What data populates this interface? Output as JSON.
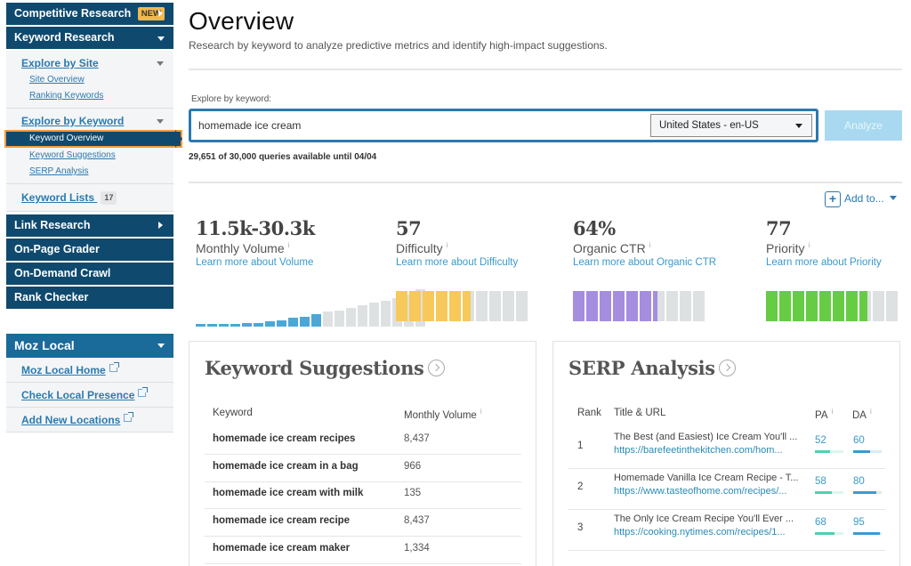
{
  "sidebar": {
    "competitive_research": {
      "label": "Competitive Research",
      "badge": "NEW"
    },
    "keyword_research": {
      "label": "Keyword Research"
    },
    "explore_by_site": {
      "label": "Explore by Site",
      "items": [
        {
          "label": "Site Overview"
        },
        {
          "label": "Ranking Keywords"
        }
      ]
    },
    "explore_by_keyword": {
      "label": "Explore by Keyword",
      "items": [
        {
          "label": "Keyword Overview",
          "active": true
        },
        {
          "label": "Keyword Suggestions"
        },
        {
          "label": "SERP Analysis"
        }
      ]
    },
    "keyword_lists": {
      "label": "Keyword Lists",
      "count": "17"
    },
    "link_research": {
      "label": "Link Research"
    },
    "on_page_grader": {
      "label": "On-Page Grader"
    },
    "on_demand_crawl": {
      "label": "On-Demand Crawl"
    },
    "rank_checker": {
      "label": "Rank Checker"
    },
    "moz_local": {
      "label": "Moz Local",
      "items": [
        {
          "label": "Moz Local Home"
        },
        {
          "label": "Check Local Presence"
        },
        {
          "label": "Add New Locations"
        }
      ]
    }
  },
  "header": {
    "title": "Overview",
    "subtitle": "Research by keyword to analyze predictive metrics and identify high-impact suggestions."
  },
  "search": {
    "label": "Explore by keyword:",
    "value": "homemade ice cream",
    "locale": "United States - en-US",
    "analyze_label": "Analyze",
    "quota": "29,651 of 30,000 queries available until 04/04"
  },
  "add_to": {
    "label": "Add to...",
    "icon": "plus-icon"
  },
  "metrics": [
    {
      "value": "11.5k-30.3k",
      "label": "Monthly Volume",
      "info": "i",
      "link": "Learn more about Volume"
    },
    {
      "value": "57",
      "label": "Difficulty",
      "info": "i",
      "link": "Learn more about Difficulty",
      "score": 57,
      "color": "#f7c85a"
    },
    {
      "value": "64%",
      "label": "Organic CTR",
      "info": "i",
      "link": "Learn more about Organic CTR",
      "score": 64,
      "color": "#a58ddf"
    },
    {
      "value": "77",
      "label": "Priority",
      "info": "i",
      "link": "Learn more about Priority",
      "score": 77,
      "color": "#66cc44"
    }
  ],
  "volume_chart": {
    "active_color": "#4aa8d8",
    "inactive_color": "#dde1e2",
    "bars": [
      2,
      2,
      2,
      2,
      3,
      3,
      4,
      5,
      7,
      8,
      10,
      12,
      13,
      15,
      17,
      19,
      21,
      23,
      26,
      30
    ],
    "active_count": 11
  },
  "keyword_suggestions": {
    "title": "Keyword Suggestions",
    "columns": [
      "Keyword",
      "Monthly Volume"
    ],
    "info": "i",
    "rows": [
      {
        "keyword": "homemade ice cream recipes",
        "volume": "8,437"
      },
      {
        "keyword": "homemade ice cream in a bag",
        "volume": "966"
      },
      {
        "keyword": "homemade ice cream with milk",
        "volume": "135"
      },
      {
        "keyword": "homemade ice cream recipe",
        "volume": "8,437"
      },
      {
        "keyword": "homemade ice cream maker",
        "volume": "1,334"
      }
    ]
  },
  "serp_analysis": {
    "title": "SERP Analysis",
    "columns": [
      "Rank",
      "Title & URL",
      "PA",
      "DA"
    ],
    "info": "i",
    "pa_color": "#4fd1b0",
    "da_color": "#3a9ad6",
    "rows": [
      {
        "rank": "1",
        "title": "The Best (and Easiest) Ice Cream You'll ...",
        "url": "https://barefeetinthekitchen.com/hom...",
        "pa": "52",
        "da": "60"
      },
      {
        "rank": "2",
        "title": "Homemade Vanilla Ice Cream Recipe - T...",
        "url": "https://www.tasteofhome.com/recipes/...",
        "pa": "58",
        "da": "80"
      },
      {
        "rank": "3",
        "title": "The Only Ice Cream Recipe You'll Ever ...",
        "url": "https://cooking.nytimes.com/recipes/1...",
        "pa": "68",
        "da": "95"
      }
    ]
  }
}
